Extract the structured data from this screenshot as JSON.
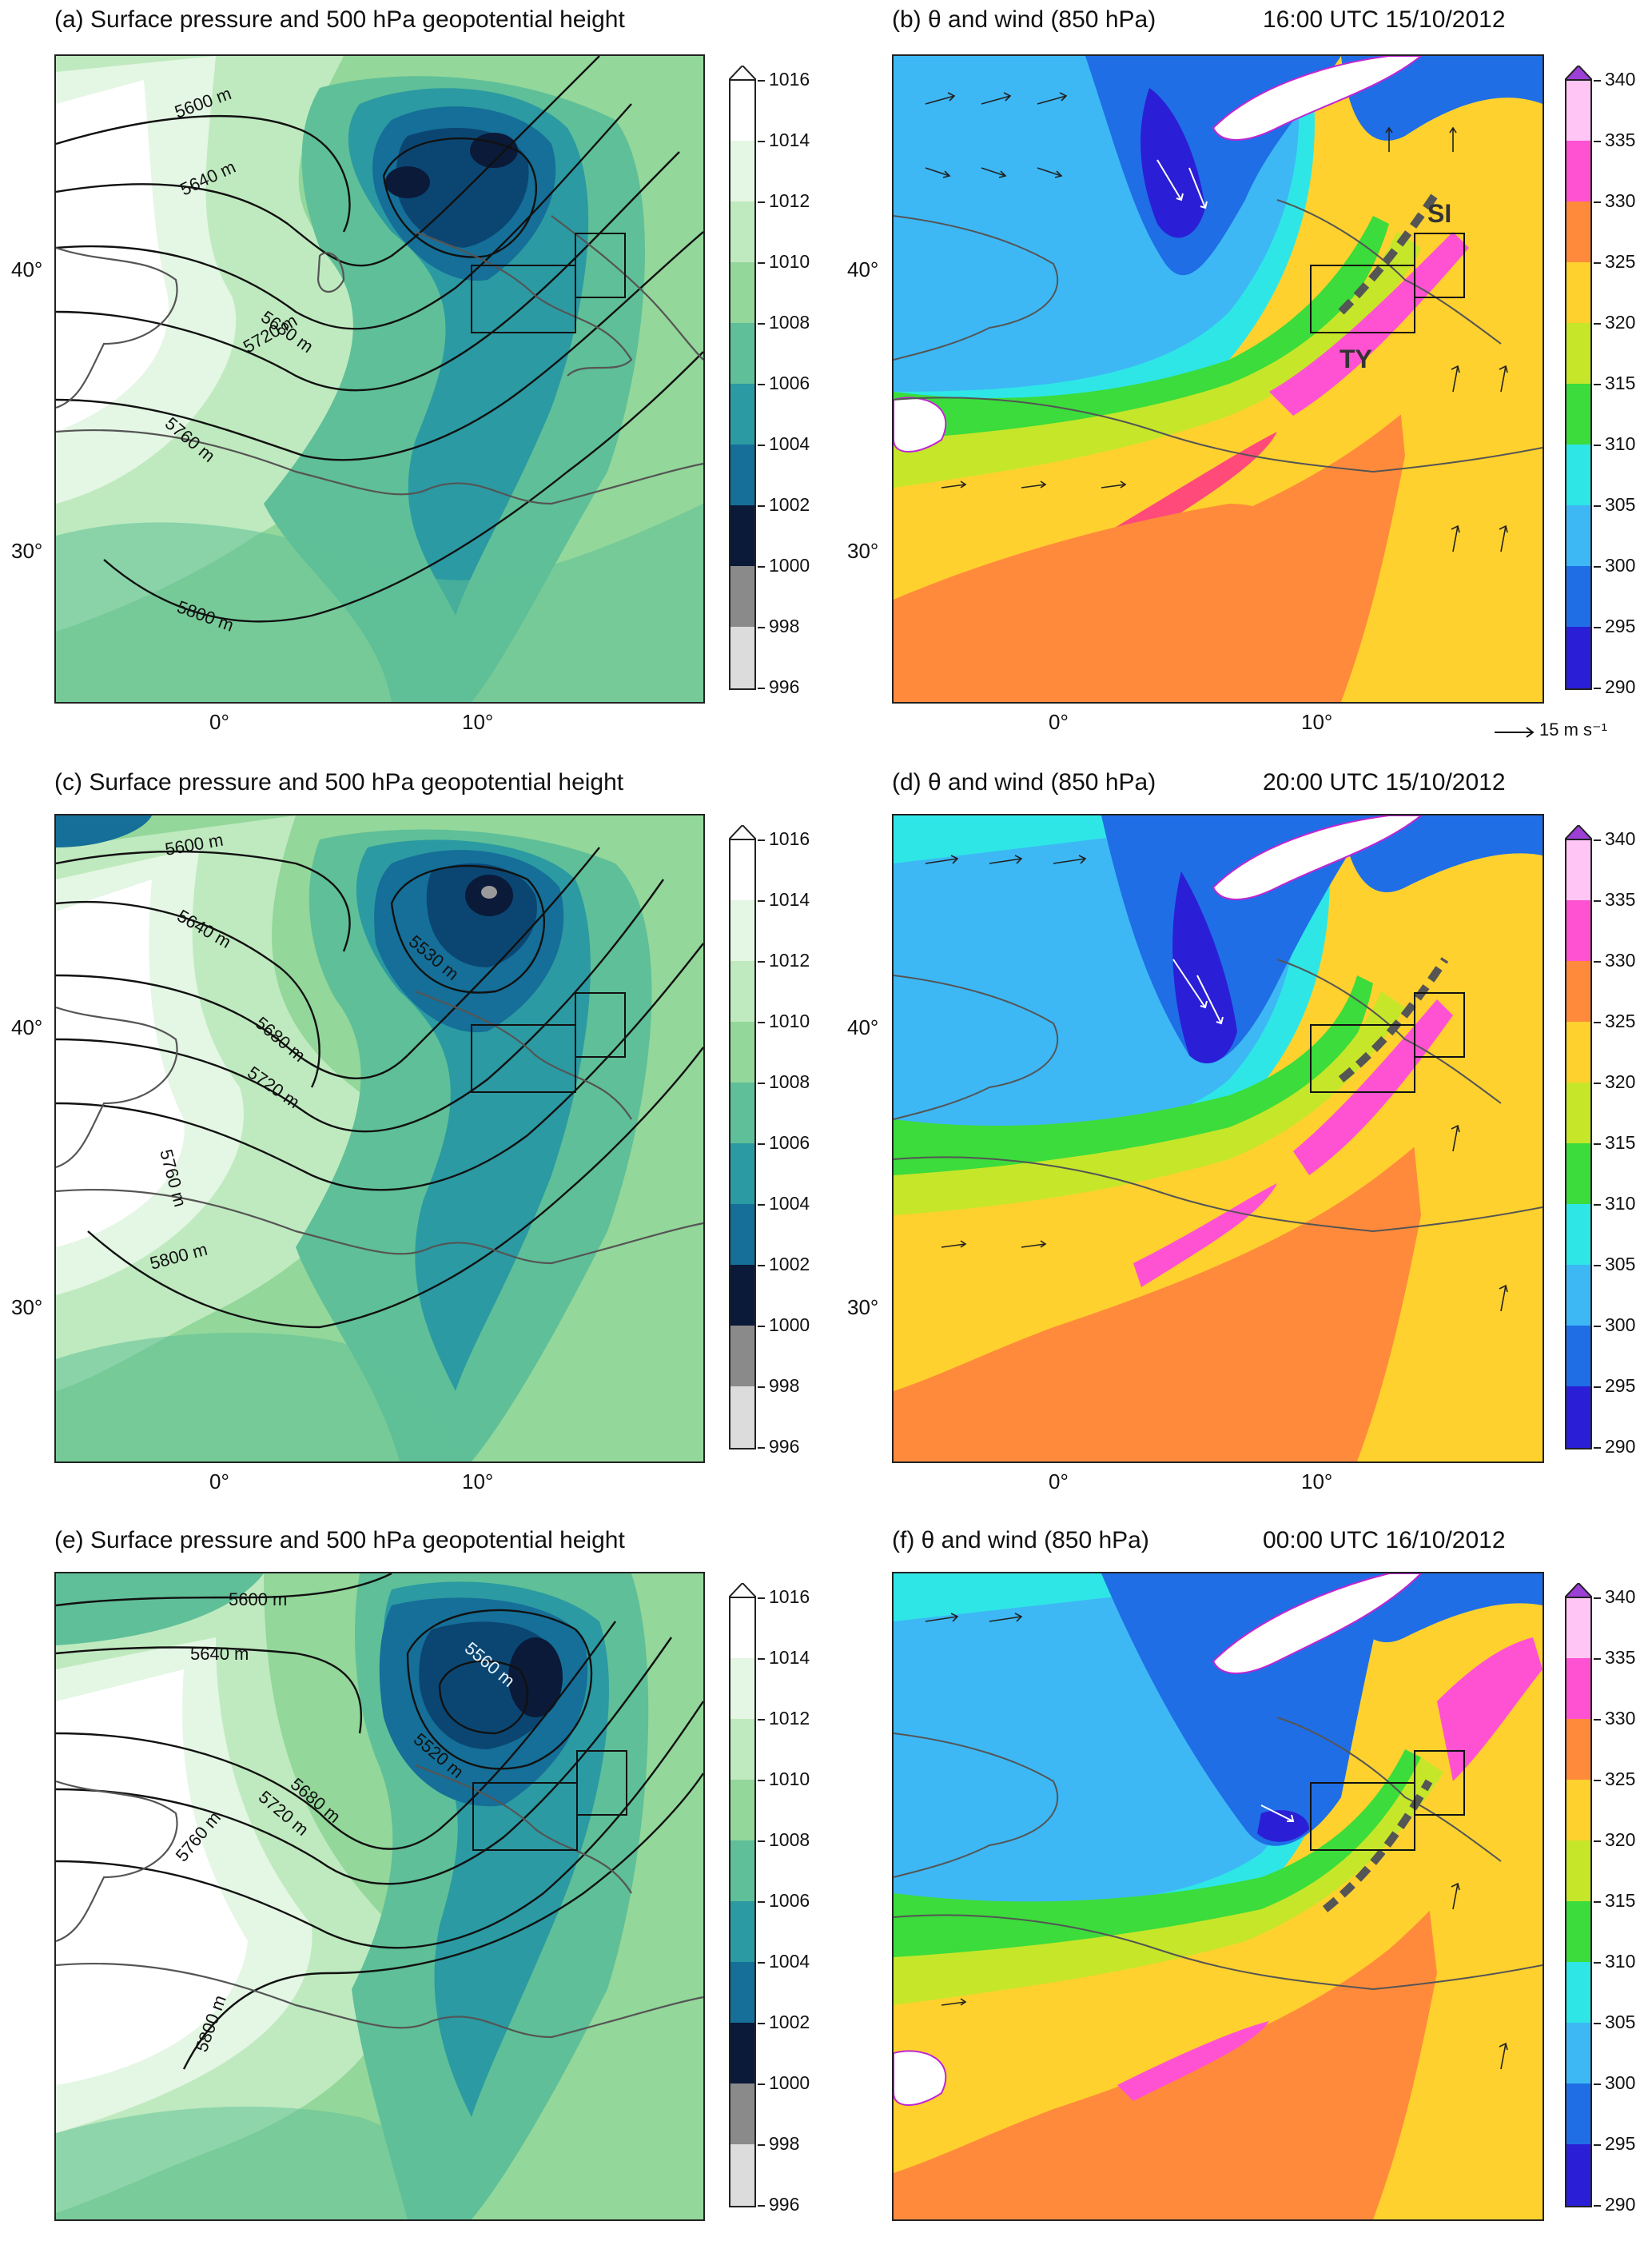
{
  "panels": {
    "a": {
      "title": "(a) Surface pressure and 500 hPa geopotential height"
    },
    "b": {
      "title": "(b) θ and wind (850 hPa)",
      "time": "16:00 UTC  15/10/2012",
      "labels": [
        "SI",
        "TY"
      ],
      "vector_ref": "15 m s⁻¹"
    },
    "c": {
      "title": "(c) Surface pressure and 500 hPa geopotential height"
    },
    "d": {
      "title": "(d) θ and wind (850 hPa)",
      "time": "20:00 UTC  15/10/2012"
    },
    "e": {
      "title": "(e) Surface pressure and 500 hPa geopotential height"
    },
    "f": {
      "title": "(f) θ and wind (850 hPa)",
      "time": "00:00 UTC  16/10/2012"
    }
  },
  "axes": {
    "lat_labels": [
      "40°",
      "30°"
    ],
    "lon_labels": [
      "0°",
      "10°"
    ]
  },
  "contours": {
    "a": [
      "5600 m",
      "5640 m",
      "5680 m",
      "5720 m",
      "5760 m",
      "5800 m"
    ],
    "c": [
      "5600 m",
      "5640 m",
      "5680 m",
      "5720 m",
      "5760 m",
      "5800 m",
      "5530 m"
    ],
    "e": [
      "5600 m",
      "5640 m",
      "5680 m",
      "5720 m",
      "5760 m",
      "5800 m",
      "5560 m",
      "5520 m"
    ]
  },
  "colorbars": {
    "pressure": {
      "ticks": [
        "1016",
        "1014",
        "1012",
        "1010",
        "1008",
        "1006",
        "1004",
        "1002",
        "1000",
        "998",
        "996"
      ],
      "colors": [
        "#ffffff",
        "#e4f6e4",
        "#bfeabf",
        "#93d79a",
        "#5fbf98",
        "#2b9aa2",
        "#156f98",
        "#0b4673",
        "#0a1a38",
        "#8a8a8a",
        "#dcdcdc"
      ]
    },
    "theta": {
      "ticks": [
        "340",
        "335",
        "330",
        "325",
        "320",
        "315",
        "310",
        "305",
        "300",
        "295",
        "290"
      ],
      "colors": [
        "#ffc6f5",
        "#ff52d2",
        "#ff4a7a",
        "#ff8a3c",
        "#ffd12e",
        "#c6e62a",
        "#3bdc3b",
        "#2ee6e6",
        "#3db8f5",
        "#1f6ee6",
        "#2a1fd6",
        "#4a10b8"
      ]
    }
  },
  "chart_data": [
    {
      "type": "heatmap",
      "panel": "a",
      "title": "(a) Surface pressure and 500 hPa geopotential height",
      "fill_variable": "Surface pressure (hPa)",
      "fill_range": [
        996,
        1016
      ],
      "contour_variable": "500 hPa geopotential height",
      "contour_levels_labeled": [
        "5600 m",
        "5640 m",
        "5680 m",
        "5720 m",
        "5760 m",
        "5800 m"
      ],
      "lat_ticks": [
        "40°",
        "30°"
      ],
      "lon_ticks": [
        "0°",
        "10°"
      ]
    },
    {
      "type": "heatmap",
      "panel": "b",
      "title": "(b) θ and wind (850 hPa)",
      "valid_time": "16:00 UTC  15/10/2012",
      "fill_variable": "θ",
      "fill_range": [
        290,
        340
      ],
      "vector_reference": "15 m s⁻¹",
      "annotations": [
        "SI",
        "TY"
      ],
      "lat_ticks": [
        "40°",
        "30°"
      ],
      "lon_ticks": [
        "0°",
        "10°"
      ]
    },
    {
      "type": "heatmap",
      "panel": "c",
      "title": "(c) Surface pressure and 500 hPa geopotential height",
      "fill_variable": "Surface pressure (hPa)",
      "fill_range": [
        996,
        1016
      ],
      "contour_levels_labeled": [
        "5600 m",
        "5640 m",
        "5680 m",
        "5720 m",
        "5760 m",
        "5800 m",
        "5530 m"
      ],
      "lat_ticks": [
        "40°",
        "30°"
      ],
      "lon_ticks": [
        "0°",
        "10°"
      ]
    },
    {
      "type": "heatmap",
      "panel": "d",
      "title": "(d) θ and wind (850 hPa)",
      "valid_time": "20:00 UTC  15/10/2012",
      "fill_variable": "θ",
      "fill_range": [
        290,
        340
      ],
      "lat_ticks": [
        "40°",
        "30°"
      ],
      "lon_ticks": [
        "0°",
        "10°"
      ]
    },
    {
      "type": "heatmap",
      "panel": "e",
      "title": "(e) Surface pressure and 500 hPa geopotential height",
      "fill_variable": "Surface pressure (hPa)",
      "fill_range": [
        996,
        1016
      ],
      "contour_levels_labeled": [
        "5600 m",
        "5640 m",
        "5680 m",
        "5720 m",
        "5760 m",
        "5800 m",
        "5560 m",
        "5520 m"
      ]
    },
    {
      "type": "heatmap",
      "panel": "f",
      "title": "(f) θ and wind (850 hPa)",
      "valid_time": "00:00 UTC  16/10/2012",
      "fill_variable": "θ",
      "fill_range": [
        290,
        340
      ]
    }
  ]
}
